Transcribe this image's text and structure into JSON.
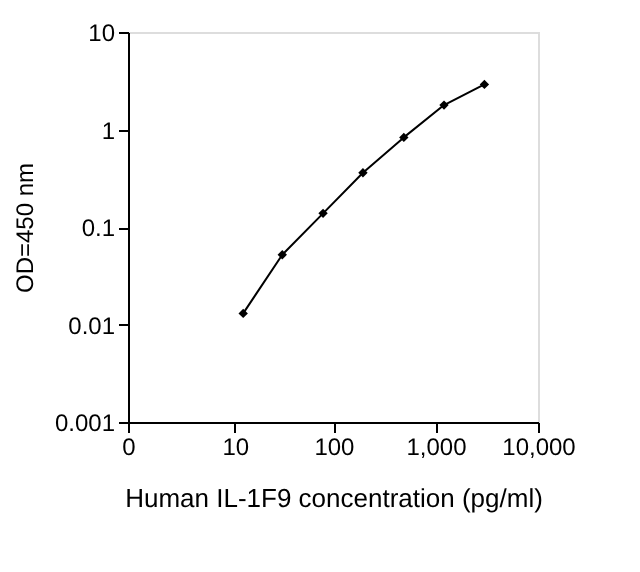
{
  "chart_data": {
    "type": "line",
    "xlabel": "Human IL-1F9 concentration (pg/ml)",
    "ylabel": "OD=450 nm",
    "x": [
      12.3,
      31,
      79,
      195,
      490,
      1210,
      3000
    ],
    "series": [
      {
        "color": "#000000",
        "values": [
          0.013,
          0.052,
          0.138,
          0.36,
          0.83,
          1.78,
          2.9
        ]
      }
    ],
    "log": "xy",
    "xlim": [
      0,
      10000
    ],
    "ylim": [
      0.001,
      10
    ],
    "xticks": [
      0,
      10,
      100,
      {
        "value": 1000,
        "label": "1,000"
      },
      {
        "value": 10000,
        "label": "10,000"
      }
    ],
    "yticks": [
      0.001,
      0.01,
      0.1,
      1,
      10
    ],
    "grid": false,
    "marker": "diamond",
    "line_style": "solid"
  }
}
